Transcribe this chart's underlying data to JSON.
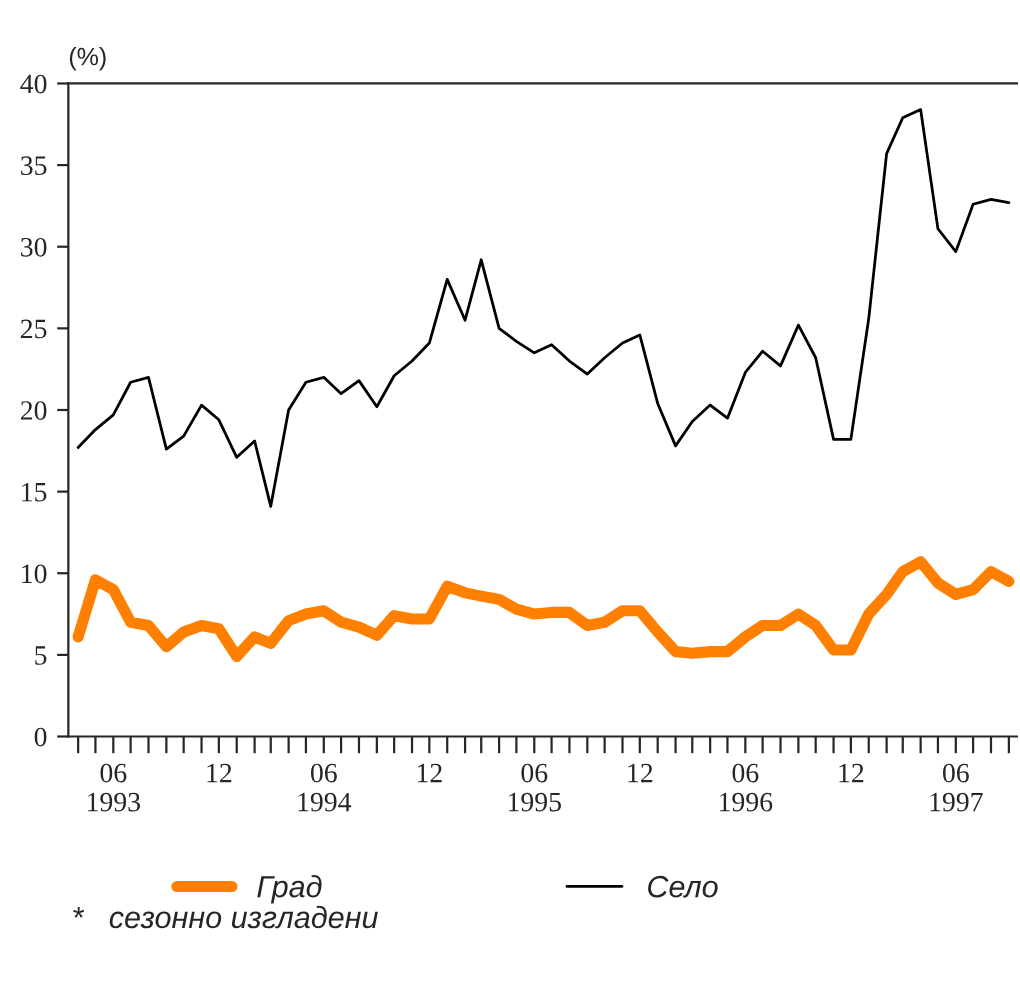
{
  "chart_data": {
    "type": "line",
    "ylabel": "(%)",
    "x": [
      "1993-04",
      "1993-05",
      "1993-06",
      "1993-07",
      "1993-08",
      "1993-09",
      "1993-10",
      "1993-11",
      "1993-12",
      "1994-01",
      "1994-02",
      "1994-03",
      "1994-04",
      "1994-05",
      "1994-06",
      "1994-07",
      "1994-08",
      "1994-09",
      "1994-10",
      "1994-11",
      "1994-12",
      "1995-01",
      "1995-02",
      "1995-03",
      "1995-04",
      "1995-05",
      "1995-06",
      "1995-07",
      "1995-08",
      "1995-09",
      "1995-10",
      "1995-11",
      "1995-12",
      "1996-01",
      "1996-02",
      "1996-03",
      "1996-04",
      "1996-05",
      "1996-06",
      "1996-07",
      "1996-08",
      "1996-09",
      "1996-10",
      "1996-11",
      "1996-12",
      "1997-01",
      "1997-02",
      "1997-03",
      "1997-04",
      "1997-05",
      "1997-06",
      "1997-07",
      "1997-08",
      "1997-09"
    ],
    "series": [
      {
        "name": "Град",
        "color": "#ff8000",
        "values": [
          6.1,
          9.6,
          9.0,
          7.0,
          6.8,
          5.5,
          6.4,
          6.8,
          6.6,
          4.9,
          6.1,
          5.7,
          7.1,
          7.5,
          7.7,
          7.0,
          6.7,
          6.2,
          7.4,
          7.2,
          7.2,
          9.2,
          8.8,
          8.6,
          8.4,
          7.8,
          7.5,
          7.6,
          7.6,
          6.8,
          7.0,
          7.7,
          7.7,
          6.4,
          5.2,
          5.1,
          5.2,
          5.2,
          6.1,
          6.8,
          6.8,
          7.5,
          6.8,
          5.3,
          5.3,
          7.5,
          8.7,
          10.1,
          10.7,
          9.4,
          8.7,
          9.0,
          10.1,
          9.5
        ]
      },
      {
        "name": "Село",
        "color": "#000000",
        "values": [
          17.7,
          18.8,
          19.7,
          21.7,
          22.0,
          17.6,
          18.4,
          20.3,
          19.4,
          17.1,
          18.1,
          14.1,
          20.0,
          21.7,
          22.0,
          21.0,
          21.8,
          20.2,
          22.1,
          23.0,
          24.1,
          28.0,
          25.5,
          29.2,
          25.0,
          24.2,
          23.5,
          24.0,
          23.0,
          22.2,
          23.2,
          24.1,
          24.6,
          20.4,
          17.8,
          19.3,
          20.3,
          19.5,
          22.3,
          23.6,
          22.7,
          25.2,
          23.2,
          18.2,
          18.2,
          25.6,
          35.7,
          37.9,
          38.4,
          31.1,
          29.7,
          32.6,
          32.9,
          32.7
        ]
      }
    ],
    "xlim": [
      "1993-03-15",
      "1997-09-15"
    ],
    "xticks": [
      {
        "value": "1993-04",
        "label": null
      },
      {
        "value": "1993-05",
        "label": null
      },
      {
        "value": "1993-06",
        "label": "06\n1993"
      },
      {
        "value": "1993-07",
        "label": null
      },
      {
        "value": "1993-08",
        "label": null
      },
      {
        "value": "1993-09",
        "label": null
      },
      {
        "value": "1993-10",
        "label": null
      },
      {
        "value": "1993-11",
        "label": null
      },
      {
        "value": "1993-12",
        "label": "12"
      },
      {
        "value": "1994-01",
        "label": null
      },
      {
        "value": "1994-02",
        "label": null
      },
      {
        "value": "1994-03",
        "label": null
      },
      {
        "value": "1994-04",
        "label": null
      },
      {
        "value": "1994-05",
        "label": null
      },
      {
        "value": "1994-06",
        "label": "06\n1994"
      },
      {
        "value": "1994-07",
        "label": null
      },
      {
        "value": "1994-08",
        "label": null
      },
      {
        "value": "1994-09",
        "label": null
      },
      {
        "value": "1994-10",
        "label": null
      },
      {
        "value": "1994-11",
        "label": null
      },
      {
        "value": "1994-12",
        "label": "12"
      },
      {
        "value": "1995-01",
        "label": null
      },
      {
        "value": "1995-02",
        "label": null
      },
      {
        "value": "1995-03",
        "label": null
      },
      {
        "value": "1995-04",
        "label": null
      },
      {
        "value": "1995-05",
        "label": null
      },
      {
        "value": "1995-06",
        "label": "06\n1995"
      },
      {
        "value": "1995-07",
        "label": null
      },
      {
        "value": "1995-08",
        "label": null
      },
      {
        "value": "1995-09",
        "label": null
      },
      {
        "value": "1995-10",
        "label": null
      },
      {
        "value": "1995-11",
        "label": null
      },
      {
        "value": "1995-12",
        "label": "12"
      },
      {
        "value": "1996-01",
        "label": null
      },
      {
        "value": "1996-02",
        "label": null
      },
      {
        "value": "1996-03",
        "label": null
      },
      {
        "value": "1996-04",
        "label": null
      },
      {
        "value": "1996-05",
        "label": null
      },
      {
        "value": "1996-06",
        "label": "06\n1996"
      },
      {
        "value": "1996-07",
        "label": null
      },
      {
        "value": "1996-08",
        "label": null
      },
      {
        "value": "1996-09",
        "label": null
      },
      {
        "value": "1996-10",
        "label": null
      },
      {
        "value": "1996-11",
        "label": null
      },
      {
        "value": "1996-12",
        "label": "12"
      },
      {
        "value": "1997-01",
        "label": null
      },
      {
        "value": "1997-02",
        "label": null
      },
      {
        "value": "1997-03",
        "label": null
      },
      {
        "value": "1997-04",
        "label": null
      },
      {
        "value": "1997-05",
        "label": null
      },
      {
        "value": "1997-06",
        "label": "06\n1997"
      },
      {
        "value": "1997-07",
        "label": null
      },
      {
        "value": "1997-08",
        "label": null
      },
      {
        "value": "1997-09",
        "label": null
      }
    ],
    "ylim": [
      0,
      40
    ],
    "yticks": [
      0,
      5,
      10,
      15,
      20,
      25,
      30,
      35,
      40
    ],
    "grid": false,
    "legend": "bottom",
    "marker": "none",
    "line_style": "solid",
    "annotations": [
      "*   сезонно изгладени"
    ]
  }
}
